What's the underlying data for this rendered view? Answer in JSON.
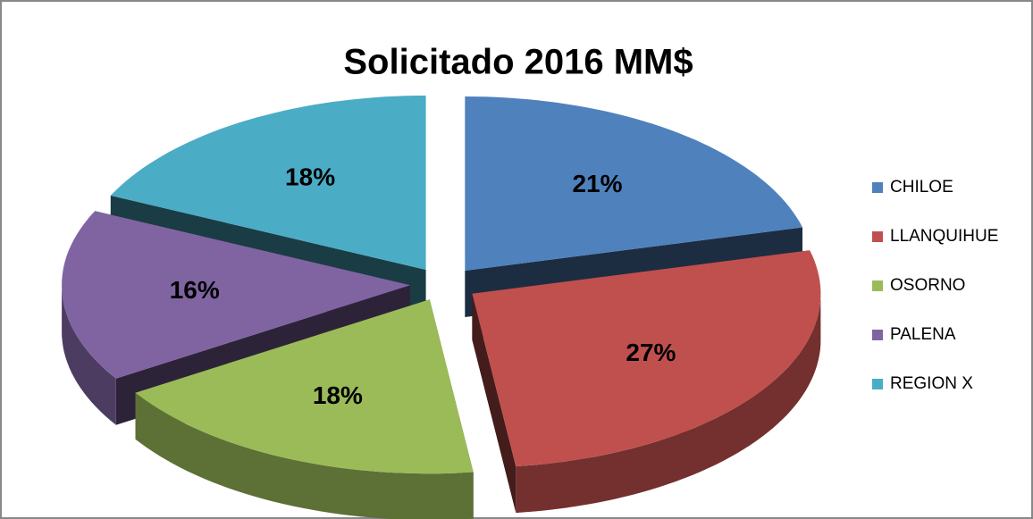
{
  "chart_data": {
    "type": "pie",
    "title": "Solicitado 2016 MM$",
    "categories": [
      "CHILOE",
      "LLANQUIHUE",
      "OSORNO",
      "PALENA",
      "REGION X"
    ],
    "values": [
      21,
      27,
      18,
      16,
      18
    ],
    "value_labels": [
      "21%",
      "27%",
      "18%",
      "16%",
      "18%"
    ],
    "colors": [
      "#4f81bd",
      "#c0504d",
      "#9bbb59",
      "#8064a2",
      "#4bacc6"
    ],
    "legend": "right"
  }
}
